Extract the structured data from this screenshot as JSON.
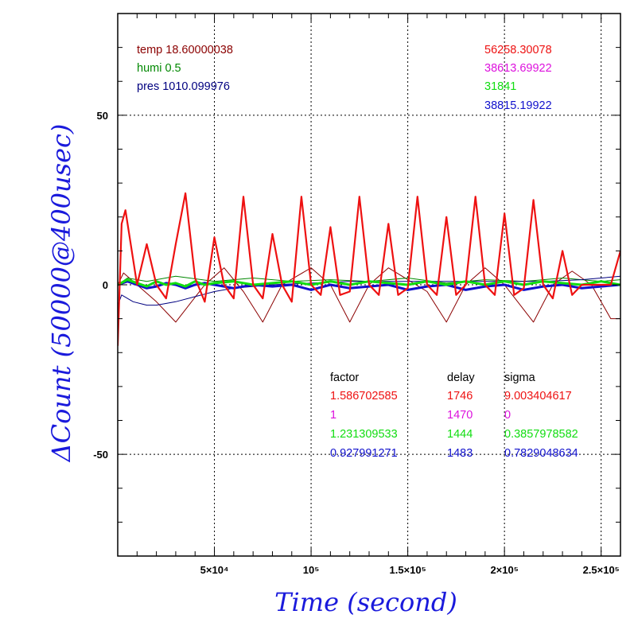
{
  "chart_data": {
    "type": "line",
    "xlabel": "Time (second)",
    "ylabel": "ΔCount (50000@400usec)",
    "xlim": [
      0,
      260000
    ],
    "ylim": [
      -80,
      80
    ],
    "x_ticks": [
      {
        "value": 50000,
        "label": "5×10⁴"
      },
      {
        "value": 100000,
        "label": "10⁵"
      },
      {
        "value": 150000,
        "label": "1.5×10⁵"
      },
      {
        "value": 200000,
        "label": "2×10⁵"
      },
      {
        "value": 250000,
        "label": "2.5×10⁵"
      }
    ],
    "y_ticks": [
      {
        "value": 50,
        "label": "50"
      },
      {
        "value": 0,
        "label": "0"
      },
      {
        "value": -50,
        "label": "-50"
      }
    ],
    "grid": true,
    "env_labels": [
      {
        "text": "temp 18.60000038",
        "color": "#8b0000"
      },
      {
        "text": "humi 0.5",
        "color": "#008800"
      },
      {
        "text": "pres 1010.099976",
        "color": "#000080"
      }
    ],
    "count_labels": [
      {
        "text": "56258.30078",
        "color": "#ee1111"
      },
      {
        "text": "38613.69922",
        "color": "#dd11dd"
      },
      {
        "text": "31841",
        "color": "#11dd11"
      },
      {
        "text": "38815.19922",
        "color": "#1111cc"
      }
    ],
    "table": {
      "headers": [
        "factor",
        "delay",
        "sigma"
      ],
      "rows": [
        {
          "color": "#ee1111",
          "factor": "1.586702585",
          "delay": "1746",
          "sigma": "9.003404617"
        },
        {
          "color": "#dd11dd",
          "factor": "1",
          "delay": "1470",
          "sigma": "0"
        },
        {
          "color": "#11dd11",
          "factor": "1.231309533",
          "delay": "1444",
          "sigma": "0.3857978582"
        },
        {
          "color": "#1111cc",
          "factor": "0.927991271",
          "delay": "1483",
          "sigma": "0.7829048634"
        }
      ]
    },
    "series": [
      {
        "color": "#8b0000",
        "x": [
          0,
          3000,
          10000,
          20000,
          30000,
          45000,
          55000,
          65000,
          75000,
          85000,
          100000,
          110000,
          120000,
          130000,
          140000,
          160000,
          170000,
          180000,
          190000,
          200000,
          215000,
          225000,
          235000,
          245000,
          255000,
          260000
        ],
        "y": [
          0,
          3.5,
          0,
          -5,
          -11,
          0,
          5,
          -2,
          -11,
          0,
          5,
          0,
          -11,
          0,
          5,
          -2,
          -11,
          0,
          5,
          0,
          -11,
          0,
          4,
          0,
          -10,
          -10
        ]
      },
      {
        "color": "#008800",
        "x": [
          0,
          5000,
          15000,
          30000,
          50000,
          70000,
          90000,
          110000,
          130000,
          150000,
          170000,
          190000,
          210000,
          230000,
          250000,
          260000
        ],
        "y": [
          0,
          2,
          1,
          2.5,
          1,
          2,
          1,
          1.5,
          1,
          2,
          0.5,
          1.5,
          1,
          2,
          1,
          1.5
        ]
      },
      {
        "color": "#000080",
        "x": [
          0,
          2000,
          8000,
          15000,
          20000,
          30000,
          40000,
          50000,
          60000,
          80000,
          100000,
          120000,
          140000,
          160000,
          180000,
          200000,
          220000,
          240000,
          250000,
          260000
        ],
        "y": [
          -6,
          -3,
          -5,
          -6,
          -6,
          -5,
          -3.5,
          -2,
          -1,
          0,
          0.5,
          1,
          1,
          1,
          1,
          1,
          1,
          1.5,
          2,
          2.5
        ]
      },
      {
        "color": "#1111cc",
        "x": [
          0,
          5000,
          10000,
          15000,
          20000,
          25000,
          30000,
          35000,
          40000,
          45000,
          50000,
          60000,
          70000,
          80000,
          90000,
          100000,
          110000,
          120000,
          130000,
          140000,
          150000,
          160000,
          170000,
          180000,
          190000,
          200000,
          210000,
          220000,
          230000,
          240000,
          250000,
          260000
        ],
        "y": [
          0,
          1,
          0,
          -1,
          -0.5,
          0.5,
          0,
          -1,
          0,
          0.5,
          0,
          -1,
          0,
          -0.5,
          0,
          -1.5,
          0,
          -1,
          -0.5,
          0,
          -1.5,
          -0.5,
          0,
          -1.5,
          -0.5,
          0,
          -1.5,
          -0.5,
          0,
          -1,
          -0.5,
          0
        ]
      },
      {
        "color": "#11dd11",
        "x": [
          0,
          5000,
          10000,
          15000,
          20000,
          25000,
          30000,
          35000,
          40000,
          45000,
          50000,
          60000,
          70000,
          80000,
          90000,
          100000,
          110000,
          120000,
          130000,
          140000,
          150000,
          160000,
          170000,
          180000,
          190000,
          200000,
          210000,
          220000,
          230000,
          240000,
          250000,
          260000
        ],
        "y": [
          0,
          1.5,
          0.5,
          -0.5,
          1,
          0,
          0.5,
          -0.5,
          1,
          0,
          0.5,
          1,
          0,
          0.5,
          1,
          0,
          1,
          0,
          1,
          0.5,
          0,
          1,
          0,
          1,
          0,
          1,
          0,
          1,
          0.5,
          0,
          1,
          0
        ]
      },
      {
        "color": "#ee1111",
        "x": [
          0,
          2000,
          4000,
          10000,
          15000,
          20000,
          25000,
          30000,
          35000,
          40000,
          45000,
          50000,
          55000,
          60000,
          65000,
          70000,
          75000,
          80000,
          85000,
          90000,
          95000,
          100000,
          105000,
          110000,
          115000,
          120000,
          125000,
          130000,
          135000,
          140000,
          145000,
          150000,
          155000,
          160000,
          165000,
          170000,
          175000,
          180000,
          185000,
          190000,
          195000,
          200000,
          205000,
          210000,
          215000,
          220000,
          225000,
          230000,
          235000,
          240000,
          245000,
          250000,
          255000,
          260000
        ],
        "y": [
          -18,
          18,
          22,
          0,
          12,
          0,
          -4,
          12,
          27,
          2,
          -5,
          14,
          0,
          -4,
          26,
          0,
          -4,
          15,
          0,
          -5,
          26,
          0,
          -3,
          17,
          -3,
          -2,
          26,
          0,
          -3,
          18,
          -3,
          -1,
          26,
          0,
          -3,
          20,
          -3,
          0,
          26,
          0,
          -3,
          21,
          -3,
          -1,
          25,
          0,
          -4,
          10,
          -3,
          0,
          0,
          0,
          0,
          10
        ]
      }
    ]
  }
}
